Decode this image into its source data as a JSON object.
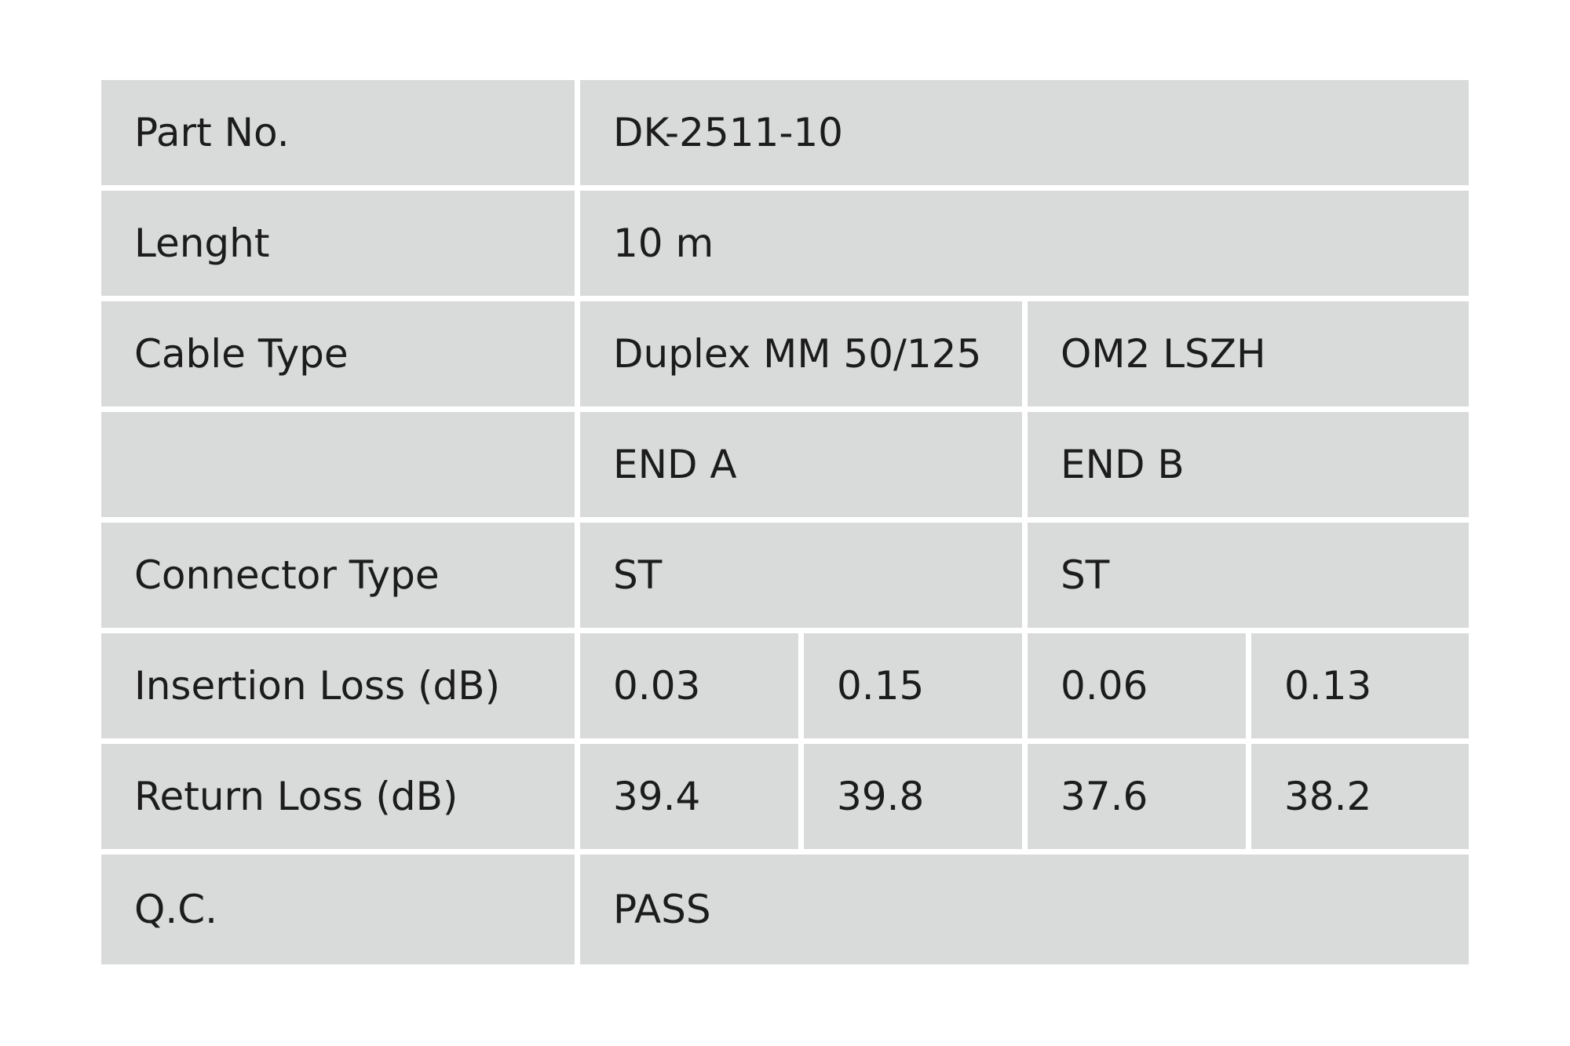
{
  "table": {
    "rows": [
      {
        "label": "Part No.",
        "cells": [
          "DK-2511-10"
        ]
      },
      {
        "label": "Lenght",
        "cells": [
          "10 m"
        ]
      },
      {
        "label": "Cable Type",
        "cells": [
          "Duplex MM 50/125",
          "OM2 LSZH"
        ]
      },
      {
        "cells": [
          "END A",
          "END B"
        ]
      },
      {
        "label": "Connector Type",
        "cells": [
          "ST",
          "ST"
        ]
      },
      {
        "label": "Insertion Loss (dB)",
        "cells": [
          "0.03",
          "0.15",
          "0.06",
          "0.13"
        ]
      },
      {
        "label": "Return Loss (dB)",
        "cells": [
          "39.4",
          "39.8",
          "37.6",
          "38.2"
        ]
      },
      {
        "label": "Q.C.",
        "cells": [
          "PASS"
        ]
      }
    ]
  }
}
